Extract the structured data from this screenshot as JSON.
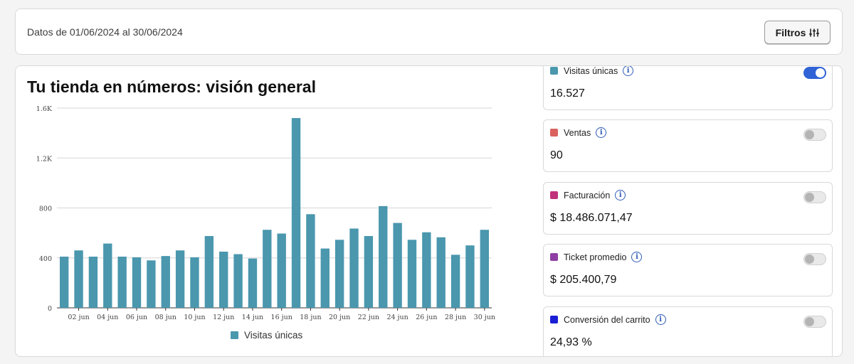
{
  "header": {
    "date_range": "Datos de 01/06/2024 al 30/06/2024",
    "filter_label": "Filtros",
    "filter_icon": "sliders-icon"
  },
  "main": {
    "title": "Tu tienda en números: visión general"
  },
  "metrics": [
    {
      "label": "Visitas únicas",
      "value": "16.527",
      "color": "#4a97ae",
      "enabled": true
    },
    {
      "label": "Ventas",
      "value": "90",
      "color": "#d9625e",
      "enabled": false
    },
    {
      "label": "Facturación",
      "value": "$ 18.486.071,47",
      "color": "#c1307a",
      "enabled": false
    },
    {
      "label": "Ticket promedio",
      "value": "$ 205.400,79",
      "color": "#8e3fa3",
      "enabled": false
    },
    {
      "label": "Conversión del carrito",
      "value": "24,93 %",
      "color": "#1b1fd4",
      "enabled": false
    }
  ],
  "chart_data": {
    "type": "bar",
    "x": [
      "01 jun",
      "02 jun",
      "03 jun",
      "04 jun",
      "05 jun",
      "06 jun",
      "07 jun",
      "08 jun",
      "09 jun",
      "10 jun",
      "11 jun",
      "12 jun",
      "13 jun",
      "14 jun",
      "15 jun",
      "16 jun",
      "17 jun",
      "18 jun",
      "19 jun",
      "20 jun",
      "21 jun",
      "22 jun",
      "23 jun",
      "24 jun",
      "25 jun",
      "26 jun",
      "27 jun",
      "28 jun",
      "29 jun",
      "30 jun"
    ],
    "tick_labels": [
      "02 jun",
      "04 jun",
      "06 jun",
      "08 jun",
      "10 jun",
      "12 jun",
      "14 jun",
      "16 jun",
      "18 jun",
      "20 jun",
      "22 jun",
      "24 jun",
      "26 jun",
      "28 jun",
      "30 jun"
    ],
    "series": [
      {
        "name": "Visitas únicas",
        "color": "#4a97ae",
        "values": [
          410,
          460,
          410,
          515,
          410,
          405,
          380,
          415,
          460,
          405,
          575,
          450,
          430,
          395,
          625,
          595,
          1520,
          750,
          475,
          545,
          635,
          575,
          815,
          680,
          545,
          605,
          565,
          425,
          500,
          625
        ]
      }
    ],
    "y_ticks": [
      "0",
      "400",
      "800",
      "1.2K",
      "1.6K"
    ],
    "ylim": [
      0,
      1600
    ],
    "grid": true,
    "legend": "bottom"
  }
}
